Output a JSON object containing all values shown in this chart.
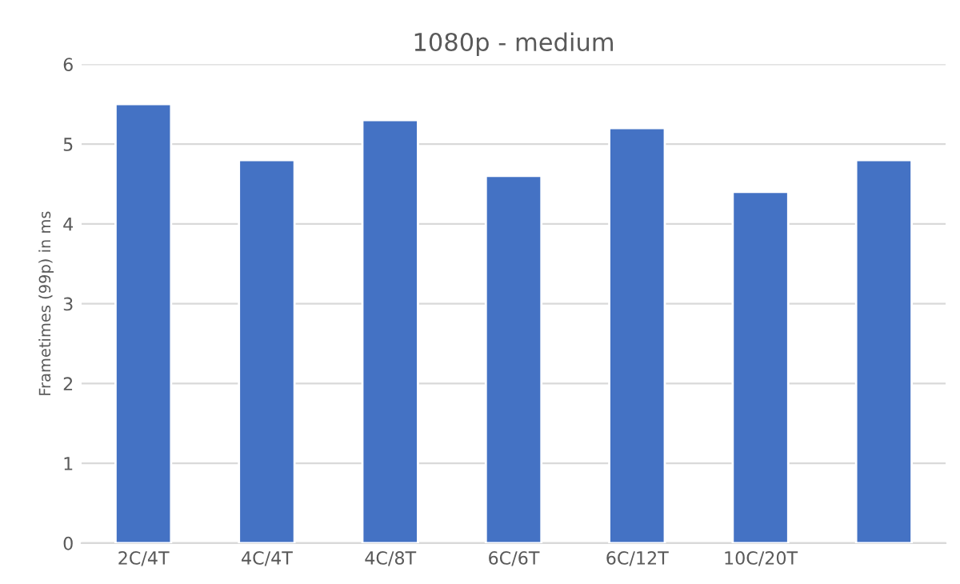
{
  "chart_data": {
    "type": "bar",
    "title": "1080p - medium",
    "ylabel": "Frametimes (99p) in ms",
    "categories": [
      "2C/4T",
      "4C/4T",
      "4C/8T",
      "6C/6T",
      "6C/12T",
      "10C/20T",
      null
    ],
    "values": [
      5.5,
      4.8,
      5.3,
      4.6,
      5.2,
      4.4,
      4.8
    ],
    "color": "#4472c4",
    "ylim": [
      0,
      6
    ],
    "yticks": [
      0,
      1,
      2,
      3,
      4,
      5,
      6
    ],
    "grid": "y"
  }
}
